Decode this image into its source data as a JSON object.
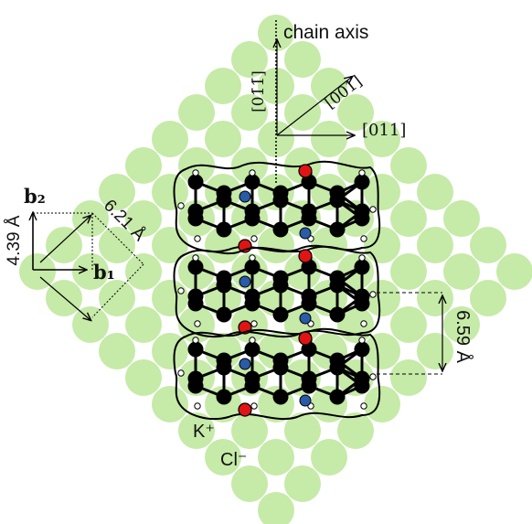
{
  "labels": {
    "chain_axis": "chain axis",
    "dir_0_1bar_1bar": "[01̄1̄]",
    "dir_001": "[001]",
    "dir_011": "[011]",
    "b2": "b₂",
    "b1": "b₁",
    "len_439": "4.39 Å",
    "len_621": "6.21 Å",
    "len_659": "6.59 Å",
    "cation": "K⁺",
    "anion": "Cl⁻"
  },
  "colors": {
    "k_ion": "#f08c8c",
    "cl_ion": "#c6eaa8",
    "carbon": "#000000",
    "oxygen": "#e01414",
    "nitrogen": "#2a5aa8",
    "hydrogen": "#ffffff"
  }
}
